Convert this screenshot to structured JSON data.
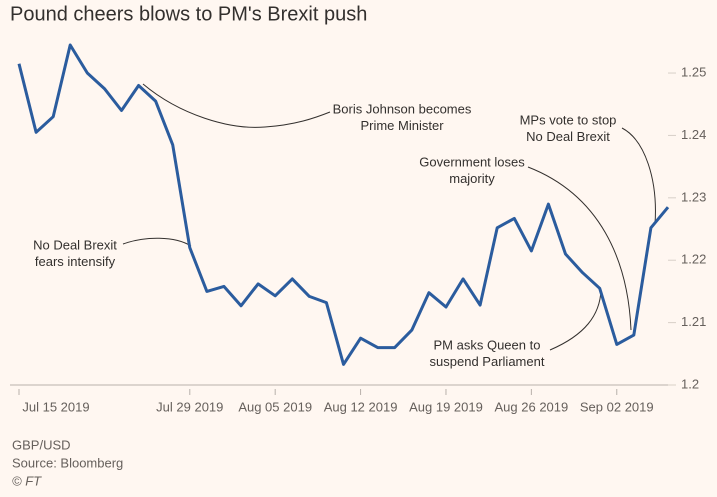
{
  "chart_data": {
    "type": "line",
    "title": "Pound cheers blows to PM's Brexit push",
    "x": [
      "2019-07-15",
      "2019-07-16",
      "2019-07-17",
      "2019-07-18",
      "2019-07-19",
      "2019-07-22",
      "2019-07-23",
      "2019-07-24",
      "2019-07-25",
      "2019-07-26",
      "2019-07-29",
      "2019-07-30",
      "2019-07-31",
      "2019-08-01",
      "2019-08-02",
      "2019-08-05",
      "2019-08-06",
      "2019-08-07",
      "2019-08-08",
      "2019-08-09",
      "2019-08-12",
      "2019-08-13",
      "2019-08-14",
      "2019-08-15",
      "2019-08-16",
      "2019-08-19",
      "2019-08-20",
      "2019-08-21",
      "2019-08-22",
      "2019-08-23",
      "2019-08-26",
      "2019-08-27",
      "2019-08-28",
      "2019-08-29",
      "2019-08-30",
      "2019-09-02",
      "2019-09-03",
      "2019-09-04",
      "2019-09-05"
    ],
    "series": [
      {
        "name": "GBP/USD",
        "color": "#2b5c9e",
        "values": [
          1.2515,
          1.2405,
          1.243,
          1.2545,
          1.25,
          1.2475,
          1.244,
          1.248,
          1.2455,
          1.2385,
          1.222,
          1.215,
          1.2158,
          1.2127,
          1.2162,
          1.2143,
          1.217,
          1.2142,
          1.2132,
          1.2033,
          1.2075,
          1.206,
          1.206,
          1.2088,
          1.2148,
          1.2125,
          1.217,
          1.2128,
          1.2252,
          1.2267,
          1.2215,
          1.229,
          1.221,
          1.218,
          1.2155,
          1.2065,
          1.208,
          1.2252,
          1.2285
        ]
      }
    ],
    "ylim": [
      1.2,
      1.256
    ],
    "yticks": [
      1.2,
      1.21,
      1.22,
      1.23,
      1.24,
      1.25
    ],
    "xticks": [
      {
        "value": "2019-07-15",
        "label": "Jul 15 2019"
      },
      {
        "value": "2019-07-29",
        "label": "Jul 29 2019"
      },
      {
        "value": "2019-08-05",
        "label": "Aug 05 2019"
      },
      {
        "value": "2019-08-12",
        "label": "Aug 12 2019"
      },
      {
        "value": "2019-08-19",
        "label": "Aug 19 2019"
      },
      {
        "value": "2019-08-26",
        "label": "Aug 26 2019"
      },
      {
        "value": "2019-09-02",
        "label": "Sep 02 2019"
      }
    ],
    "grid": false,
    "annotations": [
      {
        "lines": [
          "Boris Johnson becomes",
          "Prime Minister"
        ]
      },
      {
        "lines": [
          "MPs vote to stop",
          "No Deal Brexit"
        ]
      },
      {
        "lines": [
          "Government loses",
          "majority"
        ]
      },
      {
        "lines": [
          "No Deal Brexit",
          "fears intensify"
        ]
      },
      {
        "lines": [
          "PM asks Queen to",
          "suspend Parliament"
        ]
      }
    ],
    "footer": [
      "GBP/USD",
      "Source: Bloomberg",
      "© FT"
    ]
  }
}
